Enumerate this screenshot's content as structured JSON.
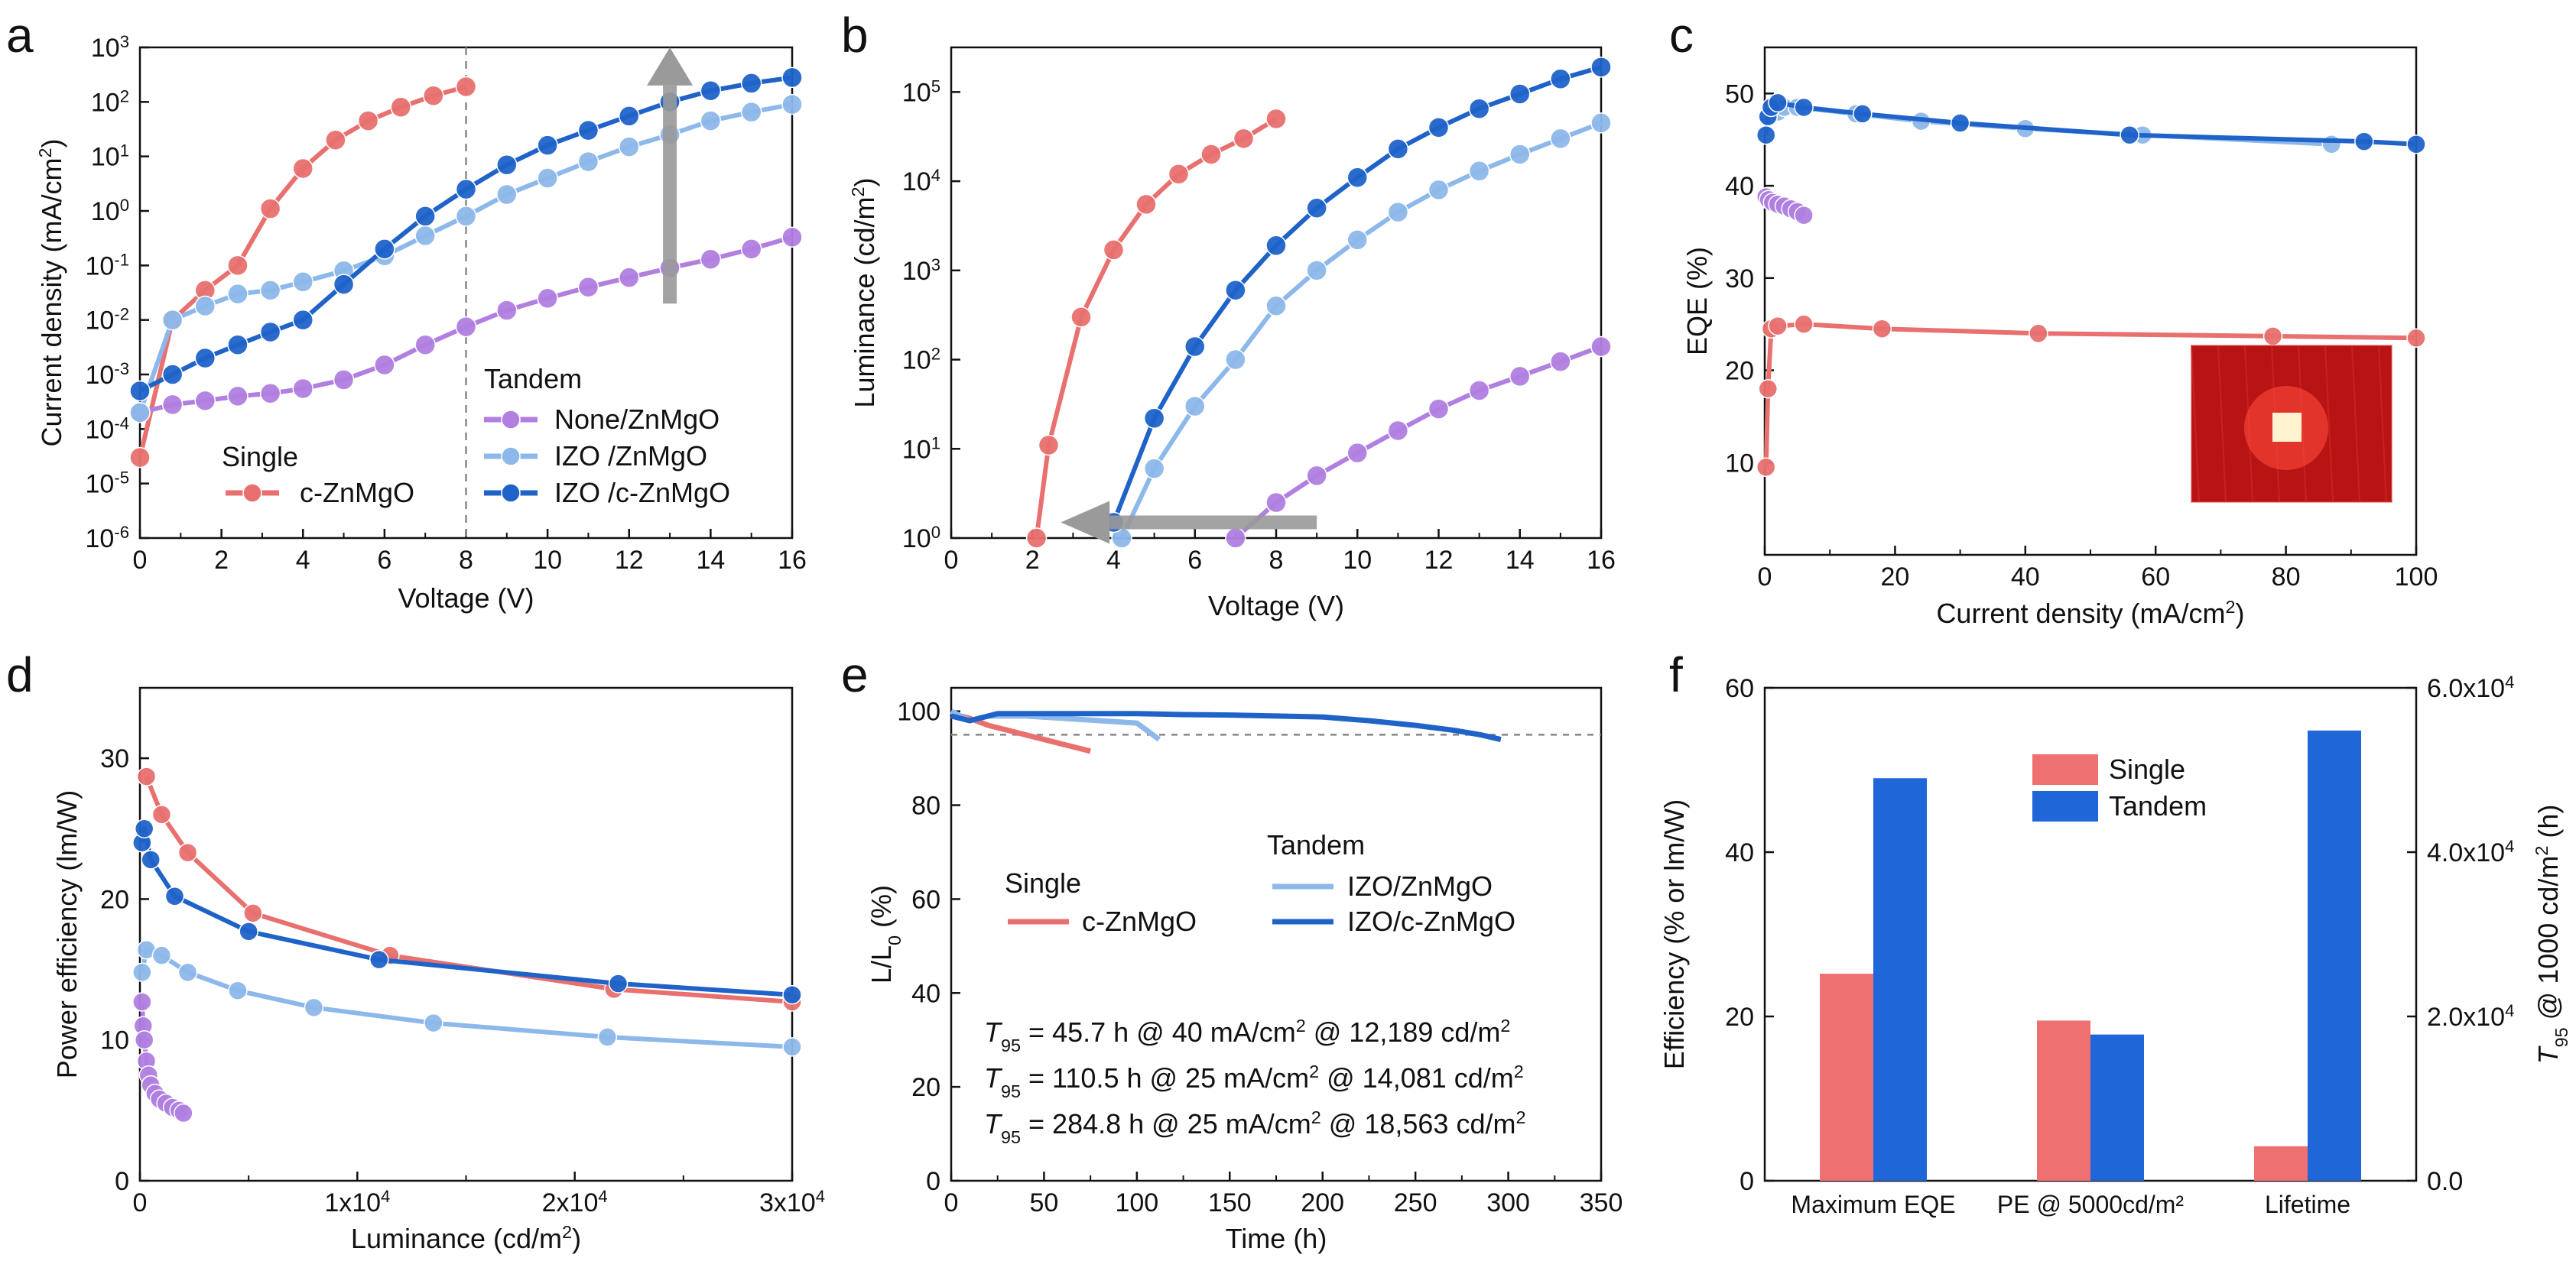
{
  "chart_data": [
    {
      "id": "a",
      "panel_label": "a",
      "type": "line",
      "title": "",
      "xlabel": "Voltage (V)",
      "ylabel": "Current density (mA/cm²)",
      "xscale": "linear",
      "yscale": "log",
      "xlim": [
        0,
        16
      ],
      "ylim_exp": [
        -6,
        3
      ],
      "xticks": [
        0,
        2,
        4,
        6,
        8,
        10,
        12,
        14,
        16
      ],
      "xtick_labels": [
        "0",
        "2",
        "4",
        "6",
        "8",
        "10",
        "12",
        "14",
        "16"
      ],
      "ytick_exps": [
        -6,
        -5,
        -4,
        -3,
        -2,
        -1,
        0,
        1,
        2,
        3
      ],
      "ytick_labels": [
        {
          "base": "10",
          "exp": "-6"
        },
        {
          "base": "10",
          "exp": "-5"
        },
        {
          "base": "10",
          "exp": "-4"
        },
        {
          "base": "10",
          "exp": "-3"
        },
        {
          "base": "10",
          "exp": "-2"
        },
        {
          "base": "10",
          "exp": "-1"
        },
        {
          "base": "10",
          "exp": "0"
        },
        {
          "base": "10",
          "exp": "1"
        },
        {
          "base": "10",
          "exp": "2"
        },
        {
          "base": "10",
          "exp": "3"
        }
      ],
      "series": [
        {
          "name": "c-ZnMgO",
          "group": "Single",
          "color": "#e8706f",
          "x": [
            0,
            0.8,
            1.6,
            2.4,
            3.2,
            4,
            4.8,
            5.6,
            6.4,
            7.2,
            8
          ],
          "y": [
            3e-05,
            0.01,
            0.035,
            0.1,
            1.1,
            6,
            20,
            45,
            80,
            130,
            190
          ]
        },
        {
          "name": "None/ZnMgO",
          "group": "Tandem",
          "color": "#b07fe0",
          "x": [
            0,
            0.8,
            1.6,
            2.4,
            3.2,
            4,
            5,
            6,
            7,
            8,
            9,
            10,
            11,
            12,
            13,
            14,
            15,
            16
          ],
          "y": [
            0.0002,
            0.00028,
            0.00033,
            0.0004,
            0.00045,
            0.00055,
            0.0008,
            0.0015,
            0.0035,
            0.0075,
            0.015,
            0.025,
            0.04,
            0.06,
            0.09,
            0.13,
            0.2,
            0.33
          ]
        },
        {
          "name": "IZO /ZnMgO",
          "group": "Tandem",
          "color": "#8db8ea",
          "x": [
            0,
            0.8,
            1.6,
            2.4,
            3.2,
            4,
            5,
            6,
            7,
            8,
            9,
            10,
            11,
            12,
            13,
            14,
            15,
            16
          ],
          "y": [
            0.0002,
            0.01,
            0.018,
            0.03,
            0.035,
            0.05,
            0.08,
            0.15,
            0.35,
            0.8,
            2,
            4,
            8,
            15,
            25,
            45,
            65,
            90
          ]
        },
        {
          "name": "IZO /c-ZnMgO",
          "group": "Tandem",
          "color": "#1f63c9",
          "x": [
            0,
            0.8,
            1.6,
            2.4,
            3.2,
            4,
            5,
            6,
            7,
            8,
            9,
            10,
            11,
            12,
            13,
            14,
            15,
            16
          ],
          "y": [
            0.0005,
            0.001,
            0.002,
            0.0035,
            0.006,
            0.01,
            0.045,
            0.2,
            0.8,
            2.5,
            7,
            16,
            30,
            55,
            100,
            160,
            220,
            280
          ]
        }
      ],
      "legend": {
        "title_single": "Single",
        "title_tandem": "Tandem",
        "position": "lower-right"
      },
      "annotations": {
        "dashed_vline_x": 8,
        "arrow": "up at x=13 from 0.02 to 1000"
      }
    },
    {
      "id": "b",
      "panel_label": "b",
      "type": "line",
      "xlabel": "Voltage (V)",
      "ylabel": "Luminance (cd/m²)",
      "xscale": "linear",
      "yscale": "log",
      "xlim": [
        0,
        16
      ],
      "ylim_exp": [
        0,
        5.5
      ],
      "xticks": [
        0,
        2,
        4,
        6,
        8,
        10,
        12,
        14,
        16
      ],
      "xtick_labels": [
        "0",
        "2",
        "4",
        "6",
        "8",
        "10",
        "12",
        "14",
        "16"
      ],
      "ytick_exps": [
        0,
        1,
        2,
        3,
        4,
        5
      ],
      "ytick_labels": [
        {
          "base": "10",
          "exp": "0"
        },
        {
          "base": "10",
          "exp": "1"
        },
        {
          "base": "10",
          "exp": "2"
        },
        {
          "base": "10",
          "exp": "3"
        },
        {
          "base": "10",
          "exp": "4"
        },
        {
          "base": "10",
          "exp": "5"
        }
      ],
      "series": [
        {
          "name": "c-ZnMgO",
          "color": "#e8706f",
          "x": [
            2.1,
            2.4,
            3.2,
            4,
            4.8,
            5.6,
            6.4,
            7.2,
            8
          ],
          "y": [
            1,
            11,
            300,
            1700,
            5500,
            12000,
            20000,
            30000,
            50000
          ]
        },
        {
          "name": "None/ZnMgO",
          "color": "#b07fe0",
          "x": [
            7,
            8,
            9,
            10,
            11,
            12,
            13,
            14,
            15,
            16
          ],
          "y": [
            1,
            2.5,
            5,
            9,
            16,
            28,
            45,
            65,
            95,
            140
          ]
        },
        {
          "name": "IZO /ZnMgO",
          "color": "#8db8ea",
          "x": [
            4.2,
            5,
            6,
            7,
            8,
            9,
            10,
            11,
            12,
            13,
            14,
            15,
            16
          ],
          "y": [
            1,
            6,
            30,
            100,
            400,
            1000,
            2200,
            4500,
            8000,
            13000,
            20000,
            30000,
            45000
          ]
        },
        {
          "name": "IZO /c-ZnMgO",
          "color": "#1f63c9",
          "x": [
            4,
            5,
            6,
            7,
            8,
            9,
            10,
            11,
            12,
            13,
            14,
            15,
            16
          ],
          "y": [
            1.5,
            22,
            140,
            600,
            1900,
            5000,
            11000,
            23000,
            40000,
            65000,
            95000,
            140000,
            190000
          ]
        }
      ],
      "annotations": {
        "arrow": "left at y=1.5 from x=9 to x=3"
      }
    },
    {
      "id": "c",
      "panel_label": "c",
      "type": "line",
      "xlabel": "Current density (mA/cm²)",
      "ylabel": "EQE (%)",
      "xlim": [
        0,
        100
      ],
      "ylim": [
        0,
        55
      ],
      "xticks": [
        0,
        20,
        40,
        60,
        80,
        100
      ],
      "xtick_labels": [
        "0",
        "20",
        "40",
        "60",
        "80",
        "100"
      ],
      "yticks": [
        10,
        20,
        30,
        40,
        50
      ],
      "ytick_labels": [
        "10",
        "20",
        "30",
        "40",
        "50"
      ],
      "series": [
        {
          "name": "c-ZnMgO",
          "color": "#e8706f",
          "x": [
            0.2,
            0.5,
            1,
            2,
            6,
            18,
            42,
            78,
            100
          ],
          "y": [
            9.5,
            18,
            24.5,
            24.8,
            25,
            24.5,
            24,
            23.7,
            23.5
          ]
        },
        {
          "name": "None/ZnMgO",
          "color": "#b07fe0",
          "x": [
            0.2,
            0.6,
            1.2,
            2,
            3,
            4,
            5,
            6
          ],
          "y": [
            38.8,
            38.5,
            38.2,
            38,
            37.8,
            37.5,
            37.2,
            36.8
          ]
        },
        {
          "name": "IZO /ZnMgO",
          "color": "#8db8ea",
          "x": [
            0.3,
            1,
            2,
            3,
            5,
            14,
            24,
            40,
            58,
            87
          ],
          "y": [
            47.5,
            48,
            48,
            48.5,
            48.5,
            47.8,
            47,
            46.2,
            45.5,
            44.5
          ]
        },
        {
          "name": "IZO /c-ZnMgO",
          "color": "#1f63c9",
          "x": [
            0.2,
            0.5,
            1,
            2,
            6,
            15,
            30,
            56,
            92,
            100
          ],
          "y": [
            45.5,
            47.5,
            48.5,
            49,
            48.5,
            47.8,
            46.8,
            45.5,
            44.8,
            44.5
          ]
        }
      ],
      "annotations": {
        "inset": "photo of red emitting device"
      }
    },
    {
      "id": "d",
      "panel_label": "d",
      "type": "line",
      "xlabel": "Luminance (cd/m²)",
      "ylabel": "Power efficiency (lm/W)",
      "xlim": [
        0,
        30000
      ],
      "ylim": [
        0,
        35
      ],
      "xticks": [
        0,
        10000,
        20000,
        30000
      ],
      "xtick_labels": [
        {
          "base": "0",
          "exp": ""
        },
        {
          "base": "1x10",
          "exp": "4"
        },
        {
          "base": "2x10",
          "exp": "4"
        },
        {
          "base": "3x10",
          "exp": "4"
        }
      ],
      "yticks": [
        0,
        10,
        20,
        30
      ],
      "ytick_labels": [
        "0",
        "10",
        "20",
        "30"
      ],
      "series": [
        {
          "name": "c-ZnMgO",
          "color": "#e8706f",
          "x": [
            300,
            1000,
            2200,
            5200,
            11500,
            21800,
            30000
          ],
          "y": [
            28.7,
            26,
            23.3,
            19,
            16,
            13.6,
            12.7
          ]
        },
        {
          "name": "None/ZnMgO",
          "color": "#b07fe0",
          "x": [
            100,
            150,
            200,
            300,
            400,
            500,
            700,
            900,
            1200,
            1500,
            1800,
            2000
          ],
          "y": [
            12.7,
            11,
            10,
            8.5,
            7.5,
            6.8,
            6.2,
            5.8,
            5.5,
            5.2,
            5,
            4.8
          ]
        },
        {
          "name": "IZO /ZnMgO",
          "color": "#8db8ea",
          "x": [
            100,
            300,
            1000,
            2200,
            4500,
            8000,
            13500,
            21500,
            30000
          ],
          "y": [
            14.8,
            16.4,
            16,
            14.8,
            13.5,
            12.3,
            11.2,
            10.2,
            9.5
          ]
        },
        {
          "name": "IZO /c-ZnMgO",
          "color": "#1f63c9",
          "x": [
            100,
            200,
            500,
            1600,
            5000,
            11000,
            22000,
            30000
          ],
          "y": [
            24,
            25,
            22.8,
            20.2,
            17.7,
            15.7,
            14,
            13.2
          ]
        }
      ]
    },
    {
      "id": "e",
      "panel_label": "e",
      "type": "line",
      "xlabel": "Time (h)",
      "ylabel": "L/L₀ (%)",
      "xlim": [
        0,
        350
      ],
      "ylim": [
        0,
        105
      ],
      "xticks": [
        0,
        50,
        100,
        150,
        200,
        250,
        300,
        350
      ],
      "xtick_labels": [
        "0",
        "50",
        "100",
        "150",
        "200",
        "250",
        "300",
        "350"
      ],
      "yticks": [
        0,
        20,
        40,
        60,
        80,
        100
      ],
      "ytick_labels": [
        "0",
        "20",
        "40",
        "60",
        "80",
        "100"
      ],
      "series": [
        {
          "name": "c-ZnMgO",
          "group": "Single",
          "color": "#e8706f",
          "x": [
            0,
            5,
            10,
            20,
            30,
            40,
            50,
            60,
            75
          ],
          "y": [
            100,
            99,
            98.5,
            97,
            96,
            95,
            94,
            93,
            91.5
          ]
        },
        {
          "name": "IZO/ZnMgO",
          "group": "Tandem",
          "color": "#8db8ea",
          "x": [
            0,
            10,
            20,
            40,
            60,
            80,
            100,
            112
          ],
          "y": [
            100,
            98,
            99,
            99,
            98.5,
            98,
            97.5,
            94
          ]
        },
        {
          "name": "IZO/c-ZnMgO",
          "group": "Tandem",
          "color": "#1f63c9",
          "x": [
            0,
            10,
            25,
            50,
            75,
            100,
            125,
            150,
            175,
            200,
            225,
            250,
            270,
            285,
            296
          ],
          "y": [
            99,
            98,
            99.5,
            99.5,
            99.5,
            99.5,
            99.3,
            99.2,
            99,
            98.8,
            98,
            97,
            96,
            95,
            94
          ]
        }
      ],
      "reference_line_y": 95,
      "legend": {
        "title_single": "Single",
        "title_tandem": "Tandem"
      },
      "t95_notes": [
        {
          "sym": "T",
          "sub": "95",
          "text": " = 45.7 h   @ 40 mA/cm",
          "sup": "2",
          "tail": " @ 12,189 cd/m",
          "sup2": "2",
          "color": "#c96a68"
        },
        {
          "sym": "T",
          "sub": "95",
          "text": " = 110.5 h @ 25 mA/cm",
          "sup": "2",
          "tail": " @ 14,081 cd/m",
          "sup2": "2",
          "color": "#8aa9cf"
        },
        {
          "sym": "T",
          "sub": "95",
          "text": " = 284.8 h @ 25 mA/cm",
          "sup": "2",
          "tail": " @ 18,563 cd/m",
          "sup2": "2",
          "color": "#2a5fa8"
        }
      ]
    },
    {
      "id": "f",
      "panel_label": "f",
      "type": "bar",
      "categories": [
        "Maximum EQE",
        "PE @ 5000cd/m²",
        "Lifetime"
      ],
      "series": [
        {
          "name": "Single",
          "color": "#ef7070",
          "values": [
            25.2,
            19.5,
            4200
          ],
          "axis": [
            "left",
            "left",
            "right"
          ]
        },
        {
          "name": "Tandem",
          "color": "#1f66d8",
          "values": [
            49,
            17.8,
            54800
          ],
          "axis": [
            "left",
            "left",
            "right"
          ]
        }
      ],
      "ylabel": "Efficiency (% or lm/W)",
      "ylim": [
        0,
        60
      ],
      "yticks": [
        0,
        20,
        40,
        60
      ],
      "ytick_labels": [
        "0",
        "20",
        "40",
        "60"
      ],
      "y2label": {
        "sym": "T",
        "sub": "95",
        "rest": " @ 1000 cd/m",
        "sup": "2",
        "tail": " (h)"
      },
      "y2lim": [
        0,
        60000
      ],
      "y2ticks": [
        0,
        20000,
        40000,
        60000
      ],
      "y2tick_labels": [
        {
          "base": "0.0",
          "exp": ""
        },
        {
          "base": "2.0x10",
          "exp": "4"
        },
        {
          "base": "4.0x10",
          "exp": "4"
        },
        {
          "base": "6.0x10",
          "exp": "4"
        }
      ],
      "legend": {
        "position": "top-center"
      }
    }
  ]
}
